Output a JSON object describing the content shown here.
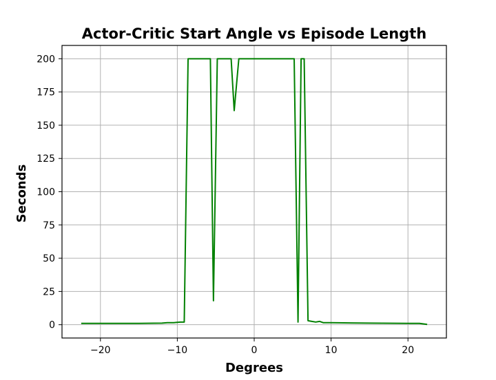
{
  "chart_data": {
    "type": "line",
    "title": "Actor-Critic Start Angle vs Episode Length",
    "xlabel": "Degrees",
    "ylabel": "Seconds",
    "xlim": [
      -25,
      25
    ],
    "ylim": [
      -10,
      210
    ],
    "xticks": [
      -20,
      -10,
      0,
      10,
      20
    ],
    "yticks": [
      0,
      25,
      50,
      75,
      100,
      125,
      150,
      175,
      200
    ],
    "xtick_labels": [
      "−20",
      "−10",
      "0",
      "10",
      "20"
    ],
    "ytick_labels": [
      "0",
      "25",
      "50",
      "75",
      "100",
      "125",
      "150",
      "175",
      "200"
    ],
    "grid": true,
    "series": [
      {
        "color": "#008000",
        "x": [
          -22.5,
          -20,
          -15,
          -12,
          -11.3,
          -11,
          -10.5,
          -10,
          -9.6,
          -9.1,
          -8.6,
          -8.4,
          -5.7,
          -5.3,
          -4.8,
          -4.7,
          -3.0,
          -2.6,
          -2.0,
          -1.8,
          0,
          2,
          4,
          5.2,
          5.7,
          6.1,
          6.5,
          7.0,
          7.5,
          8.0,
          8.5,
          9.0,
          10,
          15,
          20,
          21.5,
          22.5
        ],
        "y": [
          1,
          1,
          1,
          1.2,
          1.5,
          1.5,
          1.5,
          1.8,
          2,
          2,
          200,
          200,
          200,
          18,
          200,
          200,
          200,
          161,
          200,
          200,
          200,
          200,
          200,
          200,
          2,
          200,
          200,
          3,
          2.5,
          2,
          2.5,
          1.5,
          1.5,
          1.2,
          1,
          1,
          0.2
        ]
      }
    ]
  }
}
